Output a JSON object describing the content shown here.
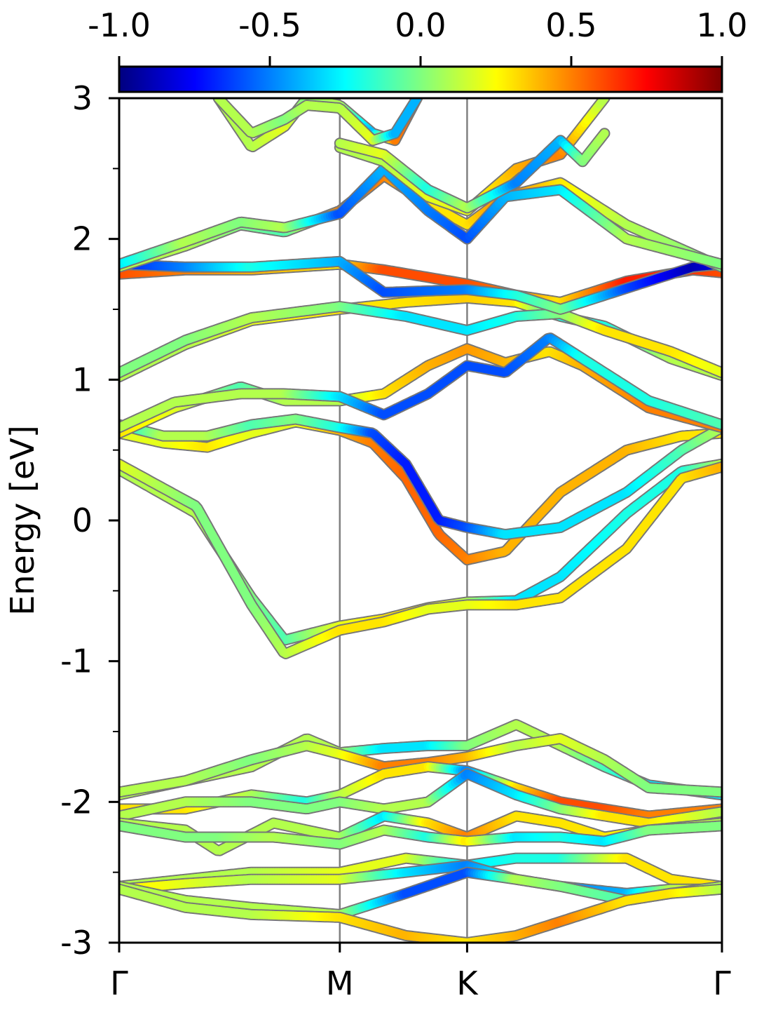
{
  "chart_data": {
    "type": "line",
    "ylabel": "Energy [eV]",
    "ylim": [
      -3,
      3
    ],
    "yticks": [
      "-3",
      "-2",
      "-1",
      "0",
      "1",
      "2",
      "3"
    ],
    "k_labels": [
      "Γ",
      "M",
      "K",
      "Γ"
    ],
    "k_positions": [
      0,
      1,
      1.577,
      2.732
    ],
    "colorbar": {
      "colormap": "jet",
      "range": [
        -1.0,
        1.0
      ],
      "ticks": [
        "-1.0",
        "-0.5",
        "0.0",
        "0.5",
        "1.0"
      ]
    },
    "bands": [
      {
        "k": [
          0,
          0.35,
          0.6,
          0.75,
          1,
          1.2,
          1.4,
          1.577,
          1.8,
          2.0,
          2.3,
          2.55,
          2.732
        ],
        "E": [
          0.36,
          0.05,
          -0.55,
          -0.85,
          -0.75,
          -0.7,
          -0.62,
          -0.58,
          -0.57,
          -0.4,
          0.05,
          0.35,
          0.4
        ],
        "c": [
          0.1,
          0.1,
          0.0,
          -0.1,
          0.2,
          0.3,
          0.3,
          0.1,
          -0.3,
          -0.3,
          -0.2,
          -0.2,
          0.1
        ]
      },
      {
        "k": [
          0,
          0.35,
          0.6,
          0.75,
          1,
          1.2,
          1.4,
          1.577,
          1.8,
          2.0,
          2.3,
          2.55,
          2.732
        ],
        "E": [
          0.4,
          0.1,
          -0.6,
          -0.95,
          -0.78,
          -0.72,
          -0.63,
          -0.6,
          -0.6,
          -0.55,
          -0.2,
          0.3,
          0.38
        ],
        "c": [
          0.2,
          0.0,
          0.0,
          0.1,
          0.3,
          0.3,
          0.2,
          0.2,
          0.3,
          0.3,
          0.3,
          0.3,
          0.4
        ]
      },
      {
        "k": [
          0,
          0.2,
          0.4,
          0.6,
          0.8,
          1,
          1.15,
          1.3,
          1.45,
          1.577,
          1.75,
          2.0,
          2.3,
          2.55,
          2.732
        ],
        "E": [
          0.62,
          0.55,
          0.52,
          0.62,
          0.7,
          0.64,
          0.55,
          0.3,
          -0.1,
          -0.28,
          -0.22,
          0.2,
          0.5,
          0.6,
          0.62
        ],
        "c": [
          0.2,
          0.2,
          0.3,
          0.2,
          0.2,
          0.4,
          0.5,
          0.55,
          0.55,
          0.5,
          0.4,
          0.4,
          0.4,
          0.3,
          0.3
        ]
      },
      {
        "k": [
          0,
          0.2,
          0.4,
          0.6,
          0.8,
          1,
          1.15,
          1.3,
          1.45,
          1.577,
          1.75,
          2.0,
          2.3,
          2.55,
          2.732
        ],
        "E": [
          0.68,
          0.6,
          0.6,
          0.68,
          0.72,
          0.66,
          0.62,
          0.4,
          0.0,
          -0.05,
          -0.1,
          -0.05,
          0.2,
          0.5,
          0.66
        ],
        "c": [
          -0.3,
          0.1,
          0.1,
          -0.1,
          0.0,
          -0.2,
          -0.6,
          -0.7,
          -0.7,
          -0.6,
          -0.3,
          -0.3,
          -0.3,
          -0.1,
          0.1
        ]
      },
      {
        "k": [
          0,
          0.25,
          0.55,
          0.75,
          1,
          1.2,
          1.4,
          1.577,
          1.75,
          1.95,
          2.1,
          2.4,
          2.732
        ],
        "E": [
          0.62,
          0.8,
          0.95,
          0.85,
          0.85,
          0.9,
          1.1,
          1.22,
          1.12,
          1.2,
          1.1,
          0.8,
          0.66
        ],
        "c": [
          0.3,
          0.2,
          -0.1,
          0.1,
          0.1,
          0.3,
          0.4,
          0.45,
          0.4,
          0.3,
          0.4,
          0.5,
          0.5
        ]
      },
      {
        "k": [
          0,
          0.25,
          0.55,
          0.75,
          1,
          1.2,
          1.4,
          1.577,
          1.75,
          1.95,
          2.1,
          2.4,
          2.732
        ],
        "E": [
          0.66,
          0.84,
          0.9,
          0.9,
          0.88,
          0.75,
          0.9,
          1.1,
          1.05,
          1.3,
          1.15,
          0.85,
          0.68
        ],
        "c": [
          0.1,
          0.1,
          0.1,
          0.1,
          -0.3,
          -0.6,
          -0.6,
          -0.6,
          -0.6,
          -0.5,
          -0.2,
          -0.2,
          -0.1
        ]
      },
      {
        "k": [
          0,
          0.3,
          0.6,
          1,
          1.3,
          1.577,
          1.8,
          2.0,
          2.2,
          2.5,
          2.732
        ],
        "E": [
          1.02,
          1.25,
          1.42,
          1.5,
          1.55,
          1.58,
          1.55,
          1.45,
          1.38,
          1.15,
          1.03
        ],
        "c": [
          0.1,
          0.1,
          0.2,
          0.3,
          0.3,
          0.35,
          0.3,
          -0.2,
          -0.2,
          0.1,
          0.1
        ]
      },
      {
        "k": [
          0,
          0.3,
          0.6,
          1,
          1.3,
          1.577,
          1.8,
          2.0,
          2.2,
          2.5,
          2.732
        ],
        "E": [
          1.05,
          1.28,
          1.44,
          1.52,
          1.45,
          1.35,
          1.45,
          1.47,
          1.35,
          1.2,
          1.05
        ],
        "c": [
          0.0,
          0.0,
          0.1,
          0.0,
          -0.3,
          -0.3,
          -0.2,
          0.0,
          0.3,
          0.3,
          0.2
        ]
      },
      {
        "k": [
          0,
          0.3,
          0.6,
          1,
          1.2,
          1.577,
          1.8,
          2.0,
          2.3,
          2.6,
          2.732
        ],
        "E": [
          1.75,
          1.78,
          1.78,
          1.82,
          1.78,
          1.68,
          1.6,
          1.55,
          1.7,
          1.78,
          1.76
        ],
        "c": [
          0.6,
          0.5,
          0.4,
          0.3,
          0.6,
          0.6,
          0.5,
          0.3,
          0.7,
          0.65,
          0.6
        ]
      },
      {
        "k": [
          0,
          0.3,
          0.6,
          1,
          1.2,
          1.577,
          1.8,
          2.0,
          2.3,
          2.6,
          2.732
        ],
        "E": [
          1.82,
          1.8,
          1.8,
          1.84,
          1.62,
          1.64,
          1.6,
          1.5,
          1.65,
          1.8,
          1.82
        ],
        "c": [
          -0.7,
          -0.5,
          -0.2,
          -0.4,
          -0.6,
          -0.5,
          -0.2,
          0.0,
          -0.6,
          -0.9,
          -0.8
        ]
      },
      {
        "k": [
          0,
          0.3,
          0.55,
          0.75,
          1,
          1.2,
          1.4,
          1.577,
          1.75,
          2.0,
          2.3,
          2.732
        ],
        "E": [
          1.8,
          1.95,
          2.1,
          2.05,
          2.2,
          2.45,
          2.25,
          2.1,
          2.3,
          2.4,
          2.1,
          1.8
        ],
        "c": [
          0.1,
          0.1,
          0.0,
          -0.1,
          0.5,
          0.5,
          0.3,
          0.3,
          0.5,
          0.3,
          0.1,
          0.0
        ]
      },
      {
        "k": [
          0,
          0.3,
          0.55,
          0.75,
          1,
          1.2,
          1.4,
          1.577,
          1.75,
          2.0,
          2.3,
          2.732
        ],
        "E": [
          1.82,
          1.98,
          2.12,
          2.08,
          2.18,
          2.5,
          2.2,
          2.0,
          2.3,
          2.35,
          2.0,
          1.82
        ],
        "c": [
          -0.3,
          0.1,
          0.0,
          0.1,
          -0.6,
          -0.4,
          -0.5,
          -0.6,
          -0.4,
          -0.3,
          0.1,
          0.0
        ]
      },
      {
        "k": [
          1,
          1.2,
          1.4,
          1.577,
          1.8,
          2.0,
          2.1,
          2.2
        ],
        "E": [
          2.65,
          2.55,
          2.3,
          2.2,
          2.5,
          2.6,
          2.8,
          3.0
        ],
        "c": [
          0.1,
          0.1,
          0.2,
          0.2,
          0.4,
          0.5,
          0.3,
          0.1
        ]
      },
      {
        "k": [
          1,
          1.2,
          1.4,
          1.577,
          1.8,
          2.0,
          2.1,
          2.2
        ],
        "E": [
          2.68,
          2.6,
          2.35,
          2.22,
          2.4,
          2.7,
          2.55,
          2.75
        ],
        "c": [
          0.1,
          0.2,
          -0.2,
          0.1,
          -0.5,
          -0.4,
          0.0,
          0.1
        ]
      },
      {
        "k": [
          0.45,
          0.6,
          0.75,
          0.85,
          1,
          1.15,
          1.25,
          1.35
        ],
        "E": [
          3.0,
          2.65,
          2.8,
          3.0,
          2.95,
          2.75,
          2.7,
          3.0
        ],
        "c": [
          0.1,
          0.1,
          0.2,
          0.0,
          0.1,
          -0.4,
          0.5,
          0.6
        ]
      },
      {
        "k": [
          0.45,
          0.6,
          0.75,
          0.85,
          1,
          1.15,
          1.25,
          1.35
        ],
        "E": [
          3.0,
          2.75,
          2.85,
          2.95,
          2.93,
          2.7,
          2.75,
          3.0
        ],
        "c": [
          0.1,
          0.1,
          0.0,
          0.1,
          0.1,
          0.2,
          -0.4,
          -0.4
        ]
      },
      {
        "k": [
          0,
          0.3,
          0.6,
          0.85,
          1,
          1.2,
          1.4,
          1.577,
          1.8,
          2.0,
          2.2,
          2.4,
          2.732
        ],
        "E": [
          -1.95,
          -1.85,
          -1.75,
          -1.55,
          -1.65,
          -1.62,
          -1.6,
          -1.6,
          -1.45,
          -1.6,
          -1.75,
          -1.88,
          -1.95
        ],
        "c": [
          0.1,
          0.1,
          0.1,
          0.1,
          0.1,
          -0.3,
          -0.3,
          0.0,
          0.1,
          0.1,
          -0.1,
          -0.3,
          -0.3
        ]
      },
      {
        "k": [
          0,
          0.3,
          0.6,
          0.85,
          1,
          1.2,
          1.4,
          1.577,
          1.8,
          2.0,
          2.2,
          2.4,
          2.732
        ],
        "E": [
          -1.93,
          -1.85,
          -1.7,
          -1.6,
          -1.66,
          -1.75,
          -1.72,
          -1.68,
          -1.6,
          -1.55,
          -1.7,
          -1.9,
          -1.93
        ],
        "c": [
          0.1,
          0.1,
          0.0,
          0.1,
          0.2,
          0.5,
          0.5,
          0.4,
          0.1,
          0.2,
          0.1,
          0.0,
          0.0
        ]
      },
      {
        "k": [
          0,
          0.3,
          0.6,
          0.85,
          1,
          1.2,
          1.4,
          1.577,
          1.8,
          2.0,
          2.2,
          2.4,
          2.732
        ],
        "E": [
          -2.05,
          -2.05,
          -1.95,
          -2.0,
          -1.95,
          -1.8,
          -1.75,
          -1.78,
          -1.9,
          -2.0,
          -2.05,
          -2.1,
          -2.05
        ],
        "c": [
          0.3,
          0.3,
          0.1,
          -0.2,
          0.1,
          0.3,
          0.3,
          -0.5,
          0.3,
          0.6,
          0.6,
          0.5,
          0.5
        ]
      },
      {
        "k": [
          0,
          0.3,
          0.6,
          0.85,
          1,
          1.2,
          1.4,
          1.577,
          1.8,
          2.0,
          2.2,
          2.4,
          2.732
        ],
        "E": [
          -2.1,
          -2.0,
          -2.0,
          -2.05,
          -2.0,
          -2.05,
          -2.0,
          -1.8,
          -1.95,
          -2.05,
          -2.1,
          -2.15,
          -2.07
        ],
        "c": [
          0.1,
          0.1,
          0.0,
          0.0,
          0.0,
          0.1,
          0.1,
          -0.5,
          -0.3,
          0.0,
          0.3,
          0.3,
          0.1
        ]
      },
      {
        "k": [
          0,
          0.3,
          0.45,
          0.7,
          1,
          1.2,
          1.4,
          1.577,
          1.8,
          2.0,
          2.2,
          2.4,
          2.732
        ],
        "E": [
          -2.15,
          -2.2,
          -2.35,
          -2.15,
          -2.25,
          -2.1,
          -2.15,
          -2.25,
          -2.1,
          -2.15,
          -2.25,
          -2.2,
          -2.15
        ],
        "c": [
          0.1,
          0.1,
          0.1,
          0.1,
          0.1,
          -0.3,
          0.3,
          0.5,
          0.3,
          0.3,
          0.3,
          0.2,
          0.1
        ]
      },
      {
        "k": [
          0,
          0.3,
          0.45,
          0.7,
          1,
          1.2,
          1.4,
          1.577,
          1.8,
          2.0,
          2.2,
          2.4,
          2.732
        ],
        "E": [
          -2.17,
          -2.25,
          -2.25,
          -2.25,
          -2.3,
          -2.2,
          -2.25,
          -2.28,
          -2.25,
          -2.25,
          -2.28,
          -2.2,
          -2.17
        ],
        "c": [
          0.0,
          0.0,
          0.0,
          0.1,
          0.0,
          0.1,
          -0.2,
          0.3,
          -0.3,
          -0.2,
          -0.3,
          0.0,
          0.0
        ]
      },
      {
        "k": [
          0,
          0.3,
          0.6,
          1,
          1.3,
          1.577,
          1.8,
          2.0,
          2.3,
          2.5,
          2.732
        ],
        "E": [
          -2.6,
          -2.55,
          -2.5,
          -2.5,
          -2.4,
          -2.45,
          -2.4,
          -2.4,
          -2.4,
          -2.55,
          -2.6
        ],
        "c": [
          0.1,
          0.1,
          0.1,
          0.2,
          0.2,
          -0.3,
          -0.2,
          -0.2,
          0.3,
          0.3,
          0.3
        ]
      },
      {
        "k": [
          0,
          0.3,
          0.6,
          1,
          1.3,
          1.577,
          1.8,
          2.0,
          2.3,
          2.5,
          2.732
        ],
        "E": [
          -2.62,
          -2.58,
          -2.55,
          -2.55,
          -2.5,
          -2.45,
          -2.55,
          -2.6,
          -2.65,
          -2.62,
          -2.62
        ],
        "c": [
          0.3,
          0.2,
          0.1,
          0.2,
          -0.3,
          -0.5,
          -0.2,
          -0.5,
          -0.4,
          0.1,
          0.3
        ]
      },
      {
        "k": [
          0,
          0.3,
          0.6,
          1,
          1.3,
          1.577,
          1.8,
          2.0,
          2.3,
          2.5,
          2.732
        ],
        "E": [
          -2.6,
          -2.7,
          -2.75,
          -2.8,
          -2.65,
          -2.5,
          -2.55,
          -2.6,
          -2.7,
          -2.65,
          -2.6
        ],
        "c": [
          0.1,
          0.1,
          0.1,
          0.1,
          -0.6,
          -0.6,
          0.1,
          0.0,
          -0.1,
          0.0,
          0.1
        ]
      },
      {
        "k": [
          0,
          0.3,
          0.6,
          1,
          1.3,
          1.577,
          1.8,
          2.0,
          2.3,
          2.5,
          2.732
        ],
        "E": [
          -2.62,
          -2.75,
          -2.8,
          -2.82,
          -2.95,
          -3.0,
          -2.95,
          -2.85,
          -2.7,
          -2.65,
          -2.62
        ],
        "c": [
          0.1,
          0.1,
          0.1,
          0.3,
          0.4,
          0.3,
          0.4,
          0.5,
          0.3,
          0.3,
          0.1
        ]
      }
    ]
  }
}
